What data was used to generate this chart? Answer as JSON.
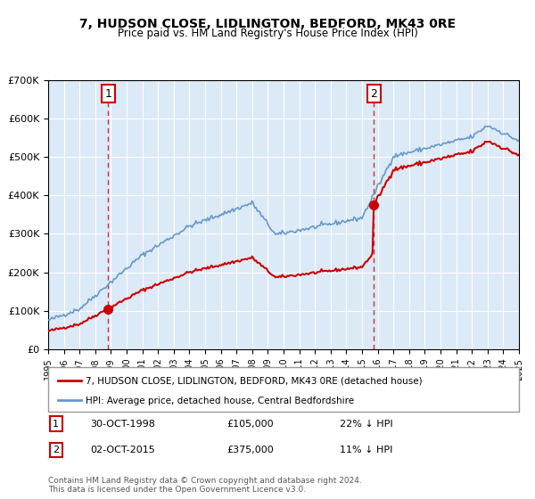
{
  "title": "7, HUDSON CLOSE, LIDLINGTON, BEDFORD, MK43 0RE",
  "subtitle": "Price paid vs. HM Land Registry's House Price Index (HPI)",
  "red_label": "7, HUDSON CLOSE, LIDLINGTON, BEDFORD, MK43 0RE (detached house)",
  "blue_label": "HPI: Average price, detached house, Central Bedfordshire",
  "sale1_date": "30-OCT-1998",
  "sale1_price": 105000,
  "sale1_hpi": "22% ↓ HPI",
  "sale2_date": "02-OCT-2015",
  "sale2_price": 375000,
  "sale2_hpi": "11% ↓ HPI",
  "sale1_x": 1998.83,
  "sale2_x": 2015.75,
  "ylim_min": 0,
  "ylim_max": 700000,
  "xlim_min": 1995,
  "xlim_max": 2025,
  "background_color": "#dce9f7",
  "plot_bg": "#dce9f7",
  "red_color": "#cc0000",
  "blue_color": "#6699cc",
  "footer": "Contains HM Land Registry data © Crown copyright and database right 2024.\nThis data is licensed under the Open Government Licence v3.0."
}
